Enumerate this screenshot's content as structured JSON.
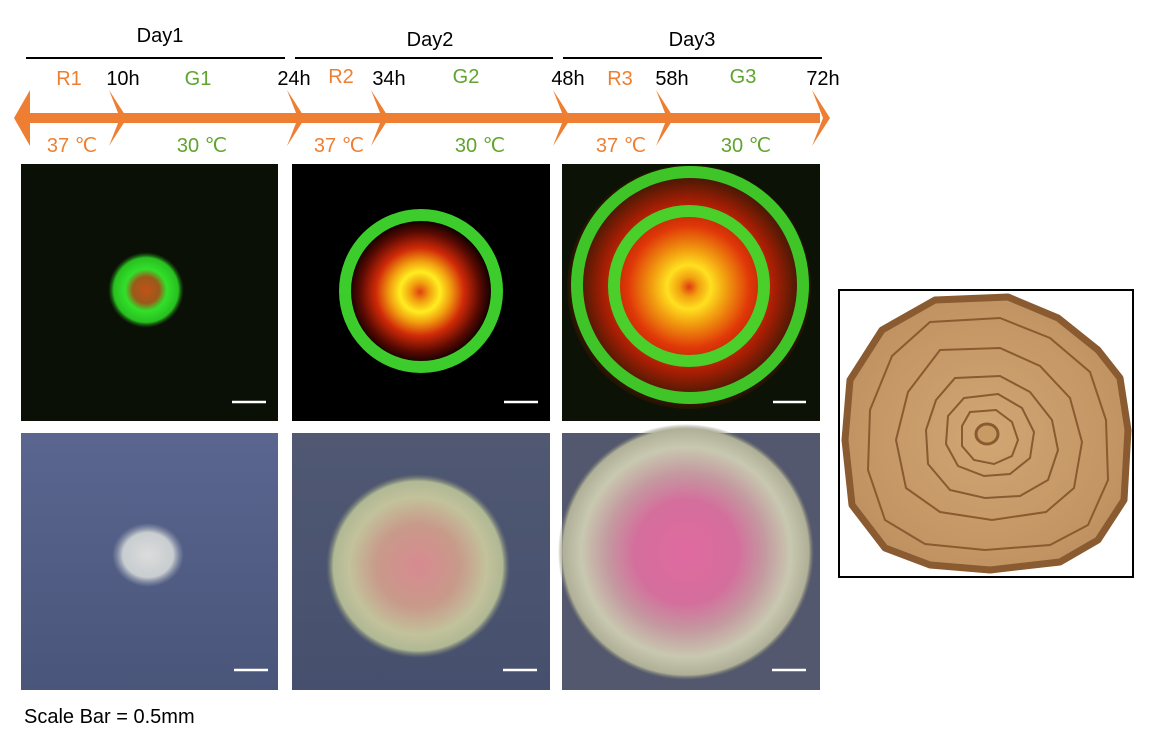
{
  "days": [
    "Day1",
    "Day2",
    "Day3"
  ],
  "timepoints": [
    "10h",
    "24h",
    "34h",
    "48h",
    "58h",
    "72h"
  ],
  "phases": [
    "R1",
    "G1",
    "R2",
    "G2",
    "R3",
    "G3"
  ],
  "temperatures": {
    "R1": "37 ℃",
    "G1": "30 ℃",
    "R2": "37 ℃",
    "G2": "30 ℃",
    "R3": "37 ℃",
    "G3": "30 ℃"
  },
  "scale_label": "Scale Bar = 0.5mm",
  "colors": {
    "orange": "#EE7F32",
    "green": "#5FA42E",
    "wood_light": "#C89A64",
    "wood_dark": "#8A5A30",
    "fluor_bg": "#0a0f04",
    "plate_bg": "#4f5a84"
  }
}
